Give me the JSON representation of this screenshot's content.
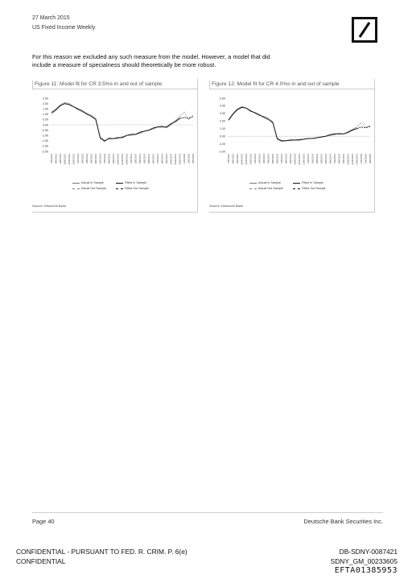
{
  "header": {
    "date": "27 March 2015",
    "publication": "US Fixed Income Weekly"
  },
  "intro_text": "For this reason we excluded any such measure from the model. However, a model that did include a measure of specialness should theoretically be more robust.",
  "legend_labels": {
    "actual_in": "Actual In Sample",
    "fitted_in": "Fitted In Sample",
    "actual_out": "Actual Out Sample",
    "fitted_out": "Fitted Out Sample"
  },
  "figures": [
    {
      "title": "Figure 11: Model fit for CR 3.5%s in and out of sample",
      "source": "Source: Deutsche Bank",
      "y_ticks": [
        "2.50",
        "2.00",
        "1.50",
        "1.00",
        "0.50",
        "0.00",
        "-0.50",
        "-1.00",
        "-1.50",
        "-2.00",
        "-2.50"
      ]
    },
    {
      "title": "Figure 12: Model fit for CR 4.0%s in and out of sample",
      "source": "Source: Deutsche Bank",
      "y_ticks": [
        "5.00",
        "4.00",
        "3.00",
        "2.00",
        "1.00",
        "0.00",
        "-1.00",
        "-2.00"
      ]
    }
  ],
  "x_dates": [
    "7/6/2012",
    "8/6/2012",
    "9/6/2012",
    "10/6/2012",
    "11/6/2012",
    "12/6/2012",
    "1/6/2013",
    "2/6/2013",
    "3/6/2013",
    "4/6/2013",
    "5/6/2013",
    "6/6/2013",
    "7/6/2013",
    "8/6/2013",
    "9/6/2013",
    "10/6/2013",
    "11/6/2013",
    "12/6/2013",
    "1/6/2014",
    "2/6/2014",
    "3/6/2014",
    "4/6/2014",
    "5/6/2014",
    "6/6/2014",
    "7/6/2014",
    "8/6/2014",
    "9/6/2014",
    "10/6/2014",
    "11/6/2014",
    "12/6/2014",
    "1/6/2015",
    "2/6/2015",
    "3/6/2015"
  ],
  "chart_data": [
    {
      "type": "line",
      "title": "Figure 11: Model fit for CR 3.5%s in and out of sample",
      "xlabel": "",
      "ylabel": "",
      "ylim": [
        -2.5,
        2.5
      ],
      "x": [
        "7/6/2012",
        "8/6/2012",
        "9/6/2012",
        "10/6/2012",
        "11/6/2012",
        "12/6/2012",
        "1/6/2013",
        "2/6/2013",
        "3/6/2013",
        "4/6/2013",
        "5/6/2013",
        "6/6/2013",
        "7/6/2013",
        "8/6/2013",
        "9/6/2013",
        "10/6/2013",
        "11/6/2013",
        "12/6/2013",
        "1/6/2014",
        "2/6/2014",
        "3/6/2014",
        "4/6/2014",
        "5/6/2014",
        "6/6/2014",
        "7/6/2014",
        "8/6/2014",
        "9/6/2014",
        "10/6/2014",
        "11/6/2014",
        "12/6/2014",
        "1/6/2015",
        "2/6/2015",
        "3/6/2015"
      ],
      "series": [
        {
          "name": "Actual In Sample",
          "values": [
            1.2,
            1.5,
            1.9,
            2.1,
            2.0,
            1.7,
            1.4,
            1.2,
            1.1,
            0.9,
            0.6,
            -1.3,
            -1.6,
            -1.2,
            -1.3,
            -1.3,
            -1.1,
            -1.0,
            -1.0,
            -0.9,
            -0.8,
            -0.6,
            -0.5,
            -0.4,
            -0.2,
            -0.1,
            -0.3,
            0.0,
            0.4,
            0.8,
            null,
            null,
            null
          ]
        },
        {
          "name": "Fitted In Sample",
          "values": [
            1.1,
            1.4,
            1.8,
            2.0,
            1.9,
            1.7,
            1.5,
            1.3,
            1.0,
            0.8,
            0.5,
            -1.2,
            -1.5,
            -1.3,
            -1.3,
            -1.2,
            -1.2,
            -1.0,
            -0.9,
            -0.9,
            -0.7,
            -0.6,
            -0.5,
            -0.3,
            -0.2,
            -0.2,
            -0.2,
            0.1,
            0.3,
            0.6,
            null,
            null,
            null
          ]
        },
        {
          "name": "Actual Out Sample",
          "values": [
            null,
            null,
            null,
            null,
            null,
            null,
            null,
            null,
            null,
            null,
            null,
            null,
            null,
            null,
            null,
            null,
            null,
            null,
            null,
            null,
            null,
            null,
            null,
            null,
            null,
            null,
            null,
            null,
            null,
            0.8,
            1.2,
            0.5,
            0.9
          ]
        },
        {
          "name": "Fitted Out Sample",
          "values": [
            null,
            null,
            null,
            null,
            null,
            null,
            null,
            null,
            null,
            null,
            null,
            null,
            null,
            null,
            null,
            null,
            null,
            null,
            null,
            null,
            null,
            null,
            null,
            null,
            null,
            null,
            null,
            null,
            null,
            0.6,
            0.7,
            0.6,
            0.8
          ]
        }
      ]
    },
    {
      "type": "line",
      "title": "Figure 12: Model fit for CR 4.0%s in and out of sample",
      "xlabel": "",
      "ylabel": "",
      "ylim": [
        -2.0,
        5.0
      ],
      "x": [
        "7/6/2012",
        "8/6/2012",
        "9/6/2012",
        "10/6/2012",
        "11/6/2012",
        "12/6/2012",
        "1/6/2013",
        "2/6/2013",
        "3/6/2013",
        "4/6/2013",
        "5/6/2013",
        "6/6/2013",
        "7/6/2013",
        "8/6/2013",
        "9/6/2013",
        "10/6/2013",
        "11/6/2013",
        "12/6/2013",
        "1/6/2014",
        "2/6/2014",
        "3/6/2014",
        "4/6/2014",
        "5/6/2014",
        "6/6/2014",
        "7/6/2014",
        "8/6/2014",
        "9/6/2014",
        "10/6/2014",
        "11/6/2014",
        "12/6/2014",
        "1/6/2015",
        "2/6/2015",
        "3/6/2015"
      ],
      "series": [
        {
          "name": "Actual In Sample",
          "values": [
            2.2,
            3.0,
            3.6,
            3.9,
            3.7,
            3.4,
            3.0,
            2.7,
            2.6,
            2.4,
            1.9,
            -0.4,
            -0.7,
            -0.6,
            -0.6,
            -0.5,
            -0.4,
            -0.4,
            -0.3,
            -0.3,
            -0.2,
            -0.1,
            0.0,
            0.1,
            0.2,
            0.4,
            0.3,
            0.6,
            0.9,
            1.2,
            null,
            null,
            null
          ]
        },
        {
          "name": "Fitted In Sample",
          "values": [
            2.1,
            2.9,
            3.5,
            3.8,
            3.7,
            3.3,
            3.1,
            2.8,
            2.5,
            2.2,
            1.8,
            -0.3,
            -0.6,
            -0.6,
            -0.5,
            -0.5,
            -0.5,
            -0.4,
            -0.3,
            -0.3,
            -0.2,
            -0.1,
            0.0,
            0.2,
            0.3,
            0.3,
            0.3,
            0.5,
            0.8,
            1.0,
            null,
            null,
            null
          ]
        },
        {
          "name": "Actual Out Sample",
          "values": [
            null,
            null,
            null,
            null,
            null,
            null,
            null,
            null,
            null,
            null,
            null,
            null,
            null,
            null,
            null,
            null,
            null,
            null,
            null,
            null,
            null,
            null,
            null,
            null,
            null,
            null,
            null,
            null,
            null,
            1.2,
            1.8,
            1.2,
            1.4
          ]
        },
        {
          "name": "Fitted Out Sample",
          "values": [
            null,
            null,
            null,
            null,
            null,
            null,
            null,
            null,
            null,
            null,
            null,
            null,
            null,
            null,
            null,
            null,
            null,
            null,
            null,
            null,
            null,
            null,
            null,
            null,
            null,
            null,
            null,
            null,
            null,
            1.0,
            1.2,
            1.1,
            1.3
          ]
        }
      ]
    }
  ],
  "footer": {
    "page": "Page 40",
    "firm": "Deutsche Bank Securities Inc."
  },
  "confidential": {
    "line1": "CONFIDENTIAL - PURSUANT TO FED. R. CRIM. P. 6(e)",
    "line2": "CONFIDENTIAL"
  },
  "bates": {
    "line1": "DB-SDNY-0087421",
    "line2": "SDNY_GM_00233605",
    "line3": "EFTA01385953"
  }
}
